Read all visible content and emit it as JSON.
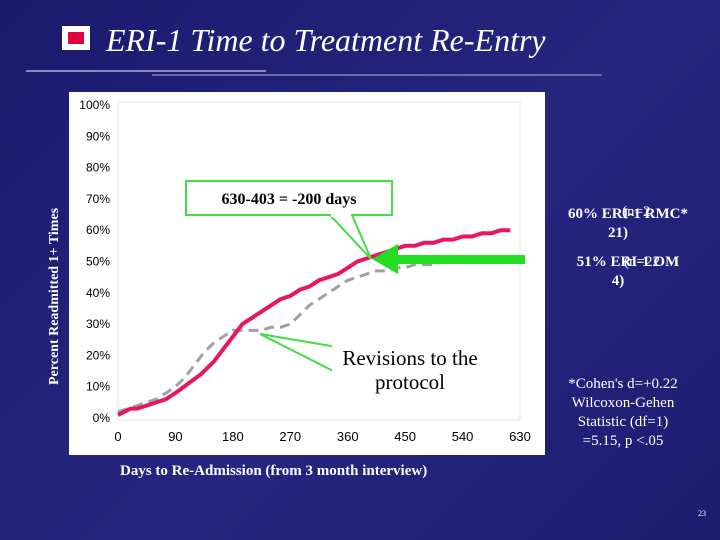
{
  "title": "ERI-1 Time to Treatment Re-Entry",
  "page_number": "23",
  "colors": {
    "background": "#22227a",
    "series_main": "#e8175d",
    "series_compare": "#a0a0a0",
    "arrow": "#22dd22",
    "callout_fill": "#ffffff"
  },
  "callouts": {
    "days_note": "630-403 = -200 days",
    "revisions": "Revisions to the protocol"
  },
  "side_labels": {
    "eri1_rmc_line1": "60% ERI-1 RMC*",
    "eri1_rmc_n": "(n=2",
    "eri1_rmc_line2": "21)",
    "eri1_om_line1": "51% ERI-1 OM",
    "eri1_om_n": "(n=22",
    "eri1_om_line2": "4)"
  },
  "stats": {
    "line1": "*Cohen's d=+0.22",
    "line2": "Wilcoxon-Gehen",
    "line3": "Statistic (df=1)",
    "line4": "=5.15, p <.05"
  },
  "chart_data": {
    "type": "line",
    "title": "ERI-1 Time to Treatment Re-Entry",
    "xlabel": "Days to Re-Admission (from 3 month interview)",
    "ylabel": "Percent Readmitted 1+ Times",
    "xlim": [
      0,
      630
    ],
    "ylim": [
      0,
      100
    ],
    "x_ticks": [
      "0",
      "90",
      "180",
      "270",
      "360",
      "450",
      "540",
      "630"
    ],
    "y_ticks": [
      "0%",
      "10%",
      "20%",
      "30%",
      "40%",
      "50%",
      "60%",
      "70%",
      "80%",
      "90%",
      "100%"
    ],
    "series": [
      {
        "name": "ERI-1 RMC",
        "color": "#e8175d",
        "style": "solid",
        "x": [
          0,
          10,
          20,
          30,
          45,
          60,
          75,
          90,
          110,
          130,
          150,
          165,
          180,
          195,
          210,
          225,
          240,
          255,
          270,
          285,
          300,
          315,
          330,
          345,
          360,
          375,
          390,
          405,
          420,
          435,
          450,
          465,
          480,
          495,
          510,
          525,
          540,
          555,
          570,
          585,
          600,
          615
        ],
        "y": [
          1,
          2,
          3,
          3,
          4,
          5,
          6,
          8,
          11,
          14,
          18,
          22,
          26,
          30,
          32,
          34,
          36,
          38,
          39,
          41,
          42,
          44,
          45,
          46,
          48,
          50,
          51,
          52,
          53,
          54,
          55,
          55,
          56,
          56,
          57,
          57,
          58,
          58,
          59,
          59,
          60,
          60
        ]
      },
      {
        "name": "ERI-1 OM",
        "color": "#a0a0a0",
        "style": "dashed",
        "x": [
          0,
          15,
          30,
          45,
          60,
          75,
          90,
          105,
          120,
          135,
          150,
          165,
          180,
          195,
          210,
          225,
          240,
          255,
          270,
          285,
          300,
          315,
          330,
          345,
          360,
          375,
          390,
          405,
          420,
          435,
          450,
          465,
          480,
          495,
          510,
          525,
          540,
          555,
          570,
          585,
          600,
          615
        ],
        "y": [
          2,
          3,
          4,
          5,
          6,
          8,
          10,
          13,
          17,
          21,
          24,
          26,
          28,
          28,
          28,
          28,
          29,
          29,
          30,
          33,
          36,
          38,
          40,
          42,
          44,
          45,
          46,
          47,
          47,
          48,
          48,
          49,
          49,
          49,
          50,
          50,
          50,
          50,
          51,
          51,
          51,
          51
        ]
      }
    ],
    "grid": false,
    "legend": "none"
  }
}
